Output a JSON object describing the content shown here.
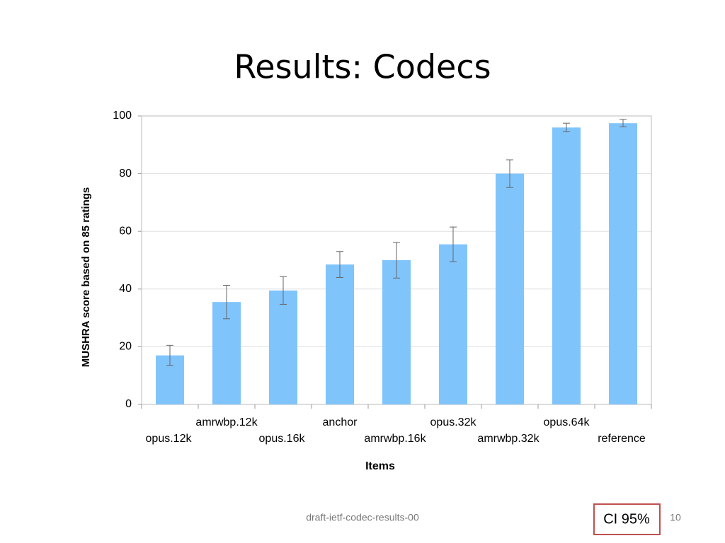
{
  "slide": {
    "title": "Results: Codecs",
    "footer": "draft-ietf-codec-results-00",
    "note": "CI 95%",
    "page_number": "10"
  },
  "chart_data": {
    "type": "bar",
    "categories": [
      "opus.12k",
      "amrwbp.12k",
      "opus.16k",
      "anchor",
      "amrwbp.16k",
      "opus.32k",
      "amrwbp.32k",
      "opus.64k",
      "reference"
    ],
    "values": [
      17,
      35.5,
      39.5,
      48.5,
      50,
      55.5,
      80,
      96,
      97.5
    ],
    "errors": [
      3.5,
      5.8,
      4.8,
      4.5,
      6.2,
      6,
      4.8,
      1.5,
      1.3
    ],
    "color": "#80c4fc",
    "ylim": [
      0,
      100
    ],
    "yticks": [
      0,
      20,
      40,
      60,
      80,
      100
    ],
    "grid": true,
    "y_label": "MUSHRA  score based on 85 ratings",
    "x_label": "Items"
  }
}
